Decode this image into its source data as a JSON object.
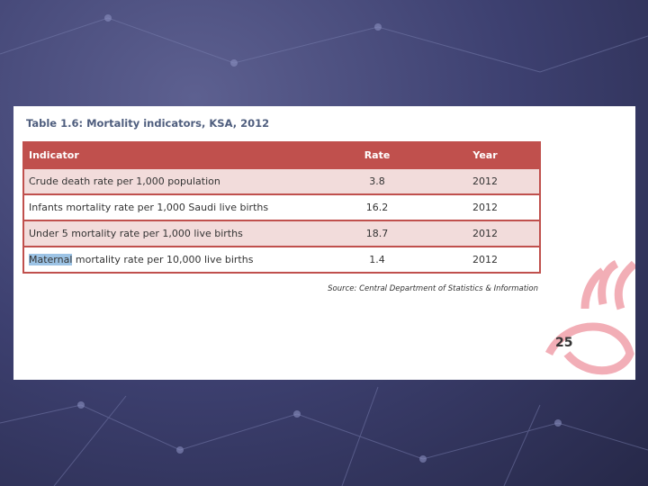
{
  "title": "Table 1.6: Mortality indicators, KSA, 2012",
  "table": {
    "header": [
      "Indicator",
      "Rate",
      "Year"
    ],
    "rows": [
      [
        "Crude death rate per 1,000 population",
        "3.8",
        "2012"
      ],
      [
        "Infants mortality rate per 1,000 Saudi live births",
        "16.2",
        "2012"
      ],
      [
        "Under 5 mortality rate per 1,000 live births",
        "18.7",
        "2012"
      ],
      [
        "Maternal mortality rate per 10,000 live births",
        "1.4",
        "2012"
      ]
    ]
  },
  "source": "Source: Central Department of Statistics & Information",
  "page_number": "25"
}
